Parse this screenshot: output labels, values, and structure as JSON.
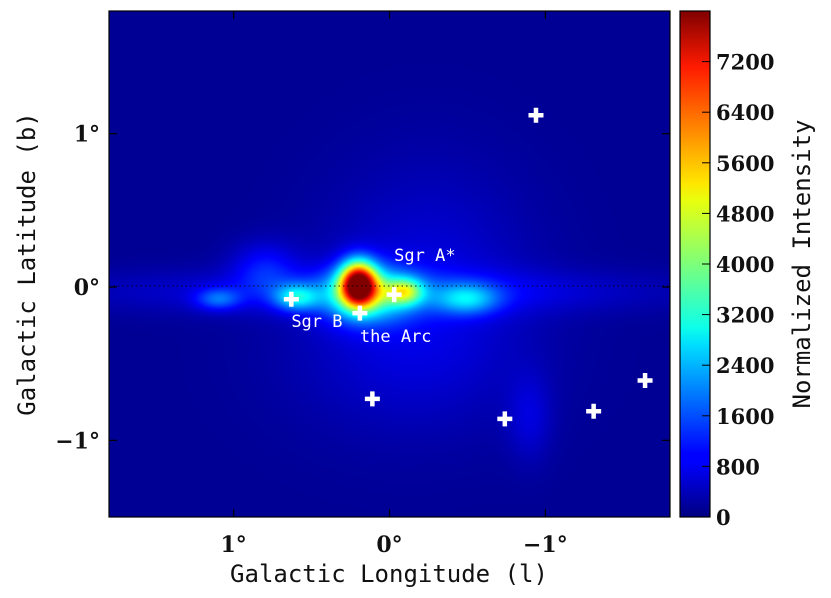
{
  "chart_data": [
    {
      "type": "heatmap",
      "colormap": "jet",
      "xlabel": "Galactic Longitude (l)",
      "ylabel": "Galactic Latitude (b)",
      "xlim": [
        1.8,
        -1.8
      ],
      "ylim": [
        -1.5,
        1.8
      ],
      "x_ticks": [
        {
          "value": 1,
          "label": "1°"
        },
        {
          "value": 0,
          "label": "0°"
        },
        {
          "value": -1,
          "label": "−1°"
        }
      ],
      "y_ticks": [
        {
          "value": 1,
          "label": "1°"
        },
        {
          "value": 0,
          "label": "0°"
        },
        {
          "value": -1,
          "label": "−1°"
        }
      ],
      "reference_lines": [
        {
          "axis": "b",
          "value": 0,
          "style": "dotted"
        }
      ],
      "markers": [
        {
          "l": 0.63,
          "b": -0.08
        },
        {
          "l": 0.19,
          "b": -0.17
        },
        {
          "l": -0.03,
          "b": -0.05
        },
        {
          "l": 0.11,
          "b": -0.73
        },
        {
          "l": -0.74,
          "b": -0.86
        },
        {
          "l": -0.94,
          "b": 1.12
        },
        {
          "l": -1.31,
          "b": -0.81
        },
        {
          "l": -1.64,
          "b": -0.61
        }
      ],
      "annotations": [
        {
          "text": "Sgr A*",
          "l": -0.03,
          "b": 0.17
        },
        {
          "text": "Sgr B",
          "l": 0.63,
          "b": -0.26
        },
        {
          "text": "the Arc",
          "l": 0.19,
          "b": -0.36
        }
      ],
      "emission_components": [
        {
          "l": -0.25,
          "b": 0.12,
          "sigma_l": 0.45,
          "sigma_b": 0.5,
          "amp": 480
        },
        {
          "l": -0.1,
          "b": -0.45,
          "sigma_l": 0.55,
          "sigma_b": 0.38,
          "amp": 380
        },
        {
          "l": 0.1,
          "b": -0.03,
          "sigma_l": 1.25,
          "sigma_b": 0.1,
          "amp": 720
        },
        {
          "l": 0.15,
          "b": -0.05,
          "sigma_l": 0.2,
          "sigma_b": 0.13,
          "amp": 2600
        },
        {
          "l": 0.6,
          "b": -0.07,
          "sigma_l": 0.1,
          "sigma_b": 0.06,
          "amp": 2000
        },
        {
          "l": 1.1,
          "b": -0.08,
          "sigma_l": 0.1,
          "sigma_b": 0.05,
          "amp": 1300
        },
        {
          "l": -0.5,
          "b": -0.08,
          "sigma_l": 0.14,
          "sigma_b": 0.07,
          "amp": 1700
        },
        {
          "l": 0.2,
          "b": 0.02,
          "sigma_l": 0.08,
          "sigma_b": 0.1,
          "amp": 6600
        },
        {
          "l": -0.1,
          "b": -0.03,
          "sigma_l": 0.08,
          "sigma_b": 0.06,
          "amp": 2500
        },
        {
          "l": -0.9,
          "b": -0.85,
          "sigma_l": 0.1,
          "sigma_b": 0.2,
          "amp": 500
        },
        {
          "l": 0.8,
          "b": 0.12,
          "sigma_l": 0.15,
          "sigma_b": 0.12,
          "amp": 900
        }
      ]
    },
    {
      "type": "colorbar",
      "label": "Normalized Intensity",
      "range": [
        0,
        8000
      ],
      "ticks": [
        "0",
        "800",
        "1600",
        "2400",
        "3200",
        "4000",
        "4800",
        "5600",
        "6400",
        "7200"
      ]
    }
  ]
}
